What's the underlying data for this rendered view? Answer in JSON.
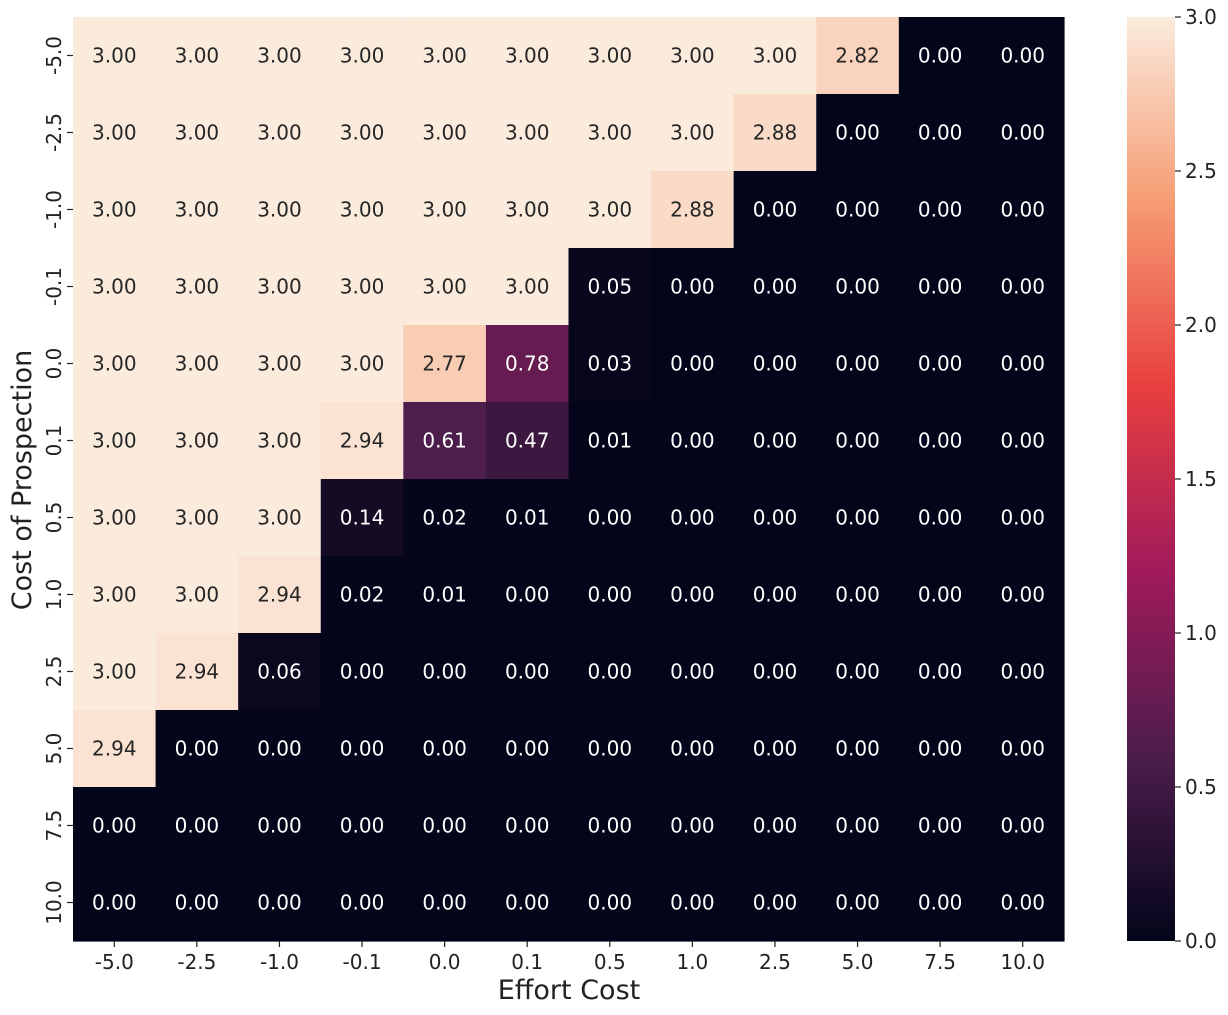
{
  "chart_data": {
    "type": "heatmap",
    "title": "",
    "xlabel": "Effort Cost",
    "ylabel": "Cost of Prospection",
    "x_categories": [
      "-5.0",
      "-2.5",
      "-1.0",
      "-0.1",
      "0.0",
      "0.1",
      "0.5",
      "1.0",
      "2.5",
      "5.0",
      "7.5",
      "10.0"
    ],
    "y_categories": [
      "-5.0",
      "-2.5",
      "-1.0",
      "-0.1",
      "0.0",
      "0.1",
      "0.5",
      "1.0",
      "2.5",
      "5.0",
      "7.5",
      "10.0"
    ],
    "values": [
      [
        3.0,
        3.0,
        3.0,
        3.0,
        3.0,
        3.0,
        3.0,
        3.0,
        3.0,
        2.82,
        0.0,
        0.0
      ],
      [
        3.0,
        3.0,
        3.0,
        3.0,
        3.0,
        3.0,
        3.0,
        3.0,
        2.88,
        0.0,
        0.0,
        0.0
      ],
      [
        3.0,
        3.0,
        3.0,
        3.0,
        3.0,
        3.0,
        3.0,
        2.88,
        0.0,
        0.0,
        0.0,
        0.0
      ],
      [
        3.0,
        3.0,
        3.0,
        3.0,
        3.0,
        3.0,
        0.05,
        0.0,
        0.0,
        0.0,
        0.0,
        0.0
      ],
      [
        3.0,
        3.0,
        3.0,
        3.0,
        2.77,
        0.78,
        0.03,
        0.0,
        0.0,
        0.0,
        0.0,
        0.0
      ],
      [
        3.0,
        3.0,
        3.0,
        2.94,
        0.61,
        0.47,
        0.01,
        0.0,
        0.0,
        0.0,
        0.0,
        0.0
      ],
      [
        3.0,
        3.0,
        3.0,
        0.14,
        0.02,
        0.01,
        0.0,
        0.0,
        0.0,
        0.0,
        0.0,
        0.0
      ],
      [
        3.0,
        3.0,
        2.94,
        0.02,
        0.01,
        0.0,
        0.0,
        0.0,
        0.0,
        0.0,
        0.0,
        0.0
      ],
      [
        3.0,
        2.94,
        0.06,
        0.0,
        0.0,
        0.0,
        0.0,
        0.0,
        0.0,
        0.0,
        0.0,
        0.0
      ],
      [
        2.94,
        0.0,
        0.0,
        0.0,
        0.0,
        0.0,
        0.0,
        0.0,
        0.0,
        0.0,
        0.0,
        0.0
      ],
      [
        0.0,
        0.0,
        0.0,
        0.0,
        0.0,
        0.0,
        0.0,
        0.0,
        0.0,
        0.0,
        0.0,
        0.0
      ],
      [
        0.0,
        0.0,
        0.0,
        0.0,
        0.0,
        0.0,
        0.0,
        0.0,
        0.0,
        0.0,
        0.0,
        0.0
      ]
    ],
    "value_format": "0.00",
    "colorbar": {
      "vmin": 0.0,
      "vmax": 3.0,
      "ticks": [
        "0.0",
        "0.5",
        "1.0",
        "1.5",
        "2.0",
        "2.5",
        "3.0"
      ],
      "colormap": "rocket",
      "color_stops": [
        "#03051a",
        "#4c1d4b",
        "#a11a5b",
        "#e83f3f",
        "#f69c73",
        "#faebdd"
      ]
    },
    "annotation_colors": {
      "on_dark": "#ffffff",
      "on_light": "#262626"
    }
  }
}
